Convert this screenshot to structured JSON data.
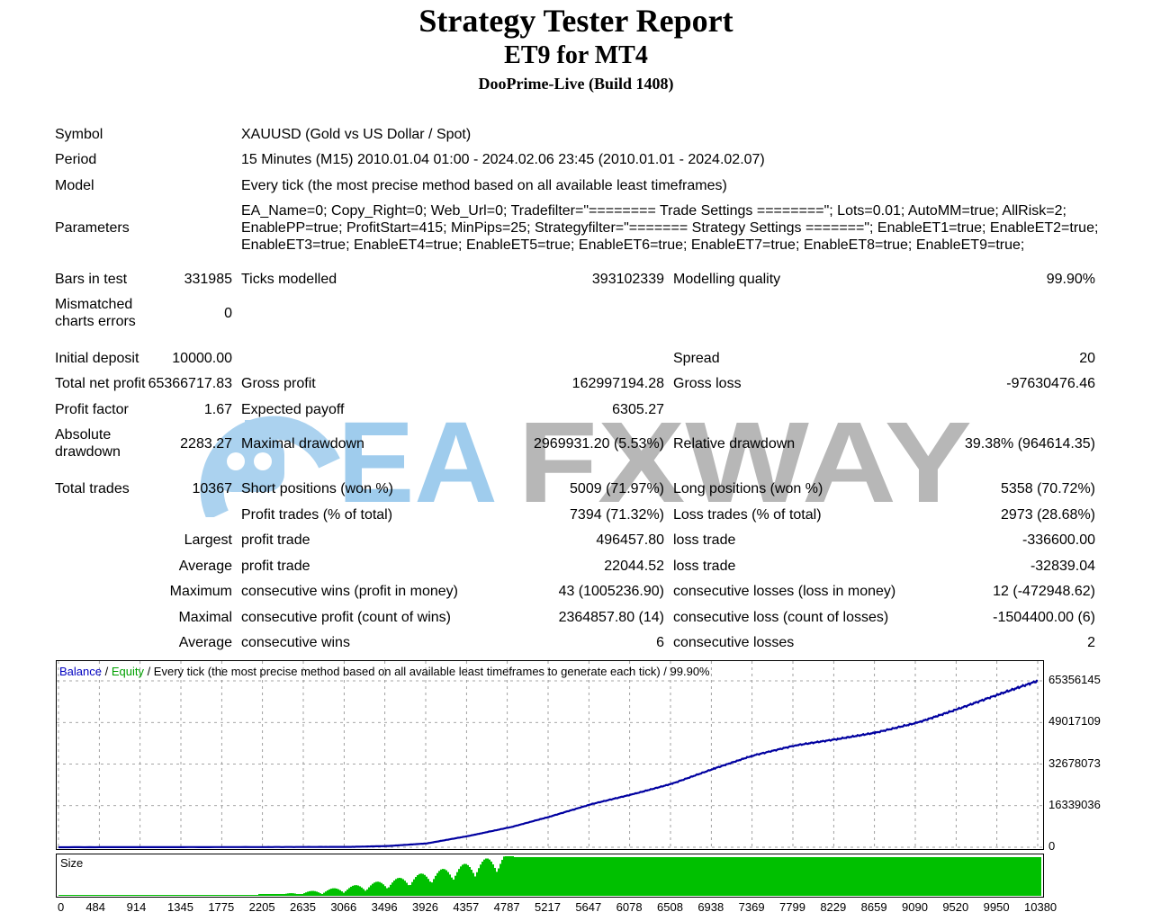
{
  "header": {
    "title": "Strategy Tester Report",
    "subtitle": "ET9 for MT4",
    "server": "DooPrime-Live (Build 1408)"
  },
  "rows": {
    "symbol": {
      "label": "Symbol",
      "value": "XAUUSD (Gold vs US Dollar / Spot)"
    },
    "period": {
      "label": "Period",
      "value": "15 Minutes (M15) 2010.01.04 01:00 - 2024.02.06 23:45 (2010.01.01 - 2024.02.07)"
    },
    "model": {
      "label": "Model",
      "value": "Every tick (the most precise method based on all available least timeframes)"
    },
    "parameters": {
      "label": "Parameters",
      "line1": "EA_Name=0; Copy_Right=0; Web_Url=0; Tradefilter=\"======== Trade Settings ========\"; Lots=0.01; AutoMM=true; AllRisk=2;",
      "line2": "EnablePP=true; ProfitStart=415; MinPips=25; Strategyfilter=\"======= Strategy Settings =======\"; EnableET1=true; EnableET2=true;",
      "line3": "EnableET3=true; EnableET4=true; EnableET5=true; EnableET6=true; EnableET7=true; EnableET8=true; EnableET9=true;"
    },
    "bars": {
      "label": "Bars in test",
      "value": "331985",
      "ticks_label": "Ticks modelled",
      "ticks_value": "393102339",
      "quality_label": "Modelling quality",
      "quality_value": "99.90%"
    },
    "mismatch": {
      "label1": "Mismatched",
      "label2": "charts errors",
      "value": "0"
    },
    "deposit": {
      "label": "Initial deposit",
      "value": "10000.00",
      "spread_label": "Spread",
      "spread_value": "20"
    },
    "netprofit": {
      "label": "Total net profit",
      "value": "65366717.83",
      "gp_label": "Gross profit",
      "gp_value": "162997194.28",
      "gl_label": "Gross loss",
      "gl_value": "-97630476.46"
    },
    "pf": {
      "label": "Profit factor",
      "value": "1.67",
      "ep_label": "Expected payoff",
      "ep_value": "6305.27"
    },
    "dd": {
      "label1": "Absolute",
      "label2": "drawdown",
      "value": "2283.27",
      "max_label": "Maximal drawdown",
      "max_value": "2969931.20 (5.53%)",
      "rel_label": "Relative drawdown",
      "rel_value": "39.38% (964614.35)"
    },
    "trades": {
      "label": "Total trades",
      "value": "10367",
      "short_label": "Short positions (won %)",
      "short_value": "5009 (71.97%)",
      "long_label": "Long positions (won %)",
      "long_value": "5358 (70.72%)"
    },
    "pt": {
      "label": "Profit trades (% of total)",
      "value": "7394 (71.32%)",
      "lt_label": "Loss trades (% of total)",
      "lt_value": "2973 (28.68%)"
    },
    "largest": {
      "label": "Largest",
      "p_label": "profit trade",
      "p_value": "496457.80",
      "l_label": "loss trade",
      "l_value": "-336600.00"
    },
    "average": {
      "label": "Average",
      "p_label": "profit trade",
      "p_value": "22044.52",
      "l_label": "loss trade",
      "l_value": "-32839.04"
    },
    "maximum": {
      "label": "Maximum",
      "p_label": "consecutive wins (profit in money)",
      "p_value": "43 (1005236.90)",
      "l_label": "consecutive losses (loss in money)",
      "l_value": "12 (-472948.62)"
    },
    "maximal": {
      "label": "Maximal",
      "p_label": "consecutive profit (count of wins)",
      "p_value": "2364857.80 (14)",
      "l_label": "consecutive loss (count of losses)",
      "l_value": "-1504400.00 (6)"
    },
    "average2": {
      "label": "Average",
      "p_label": "consecutive wins",
      "p_value": "6",
      "l_label": "consecutive losses",
      "l_value": "2"
    }
  },
  "watermark": {
    "text_blue": "EA",
    "text_gray": "FXWAY"
  },
  "chart": {
    "caption_balance": "Balance",
    "caption_sep1": " / ",
    "caption_equity": "Equity",
    "caption_rest": " / Every tick (the most precise method based on all available least timeframes to generate each tick) / 99.90%",
    "y_ticks": [
      "65356145",
      "49017109",
      "32678073",
      "16339036",
      "0"
    ],
    "x_ticks": [
      "0",
      "484",
      "914",
      "1345",
      "1775",
      "2205",
      "2635",
      "3066",
      "3496",
      "3926",
      "4357",
      "4787",
      "5217",
      "5647",
      "6078",
      "6508",
      "6938",
      "7369",
      "7799",
      "8229",
      "8659",
      "9090",
      "9520",
      "9950",
      "10380"
    ],
    "size_label": "Size",
    "colors": {
      "balance": "#0000a0",
      "equity": "#00b000",
      "volume": "#00c000"
    }
  },
  "chart_data": {
    "type": "line",
    "title": "",
    "xlabel": "",
    "ylabel": "",
    "ylim": [
      0,
      65356145
    ],
    "xlim": [
      0,
      10367
    ],
    "series": [
      {
        "name": "Balance",
        "x": [
          0,
          2200,
          3100,
          3500,
          3900,
          4350,
          4800,
          5200,
          5650,
          6100,
          6500,
          6950,
          7350,
          7800,
          8250,
          8650,
          9100,
          9500,
          9950,
          10367
        ],
        "values": [
          10000,
          80000,
          150000,
          500000,
          1500000,
          4500000,
          8000000,
          12000000,
          17000000,
          21000000,
          25000000,
          31000000,
          36000000,
          40000000,
          42500000,
          45000000,
          49000000,
          54000000,
          60000000,
          65366717
        ]
      }
    ]
  }
}
